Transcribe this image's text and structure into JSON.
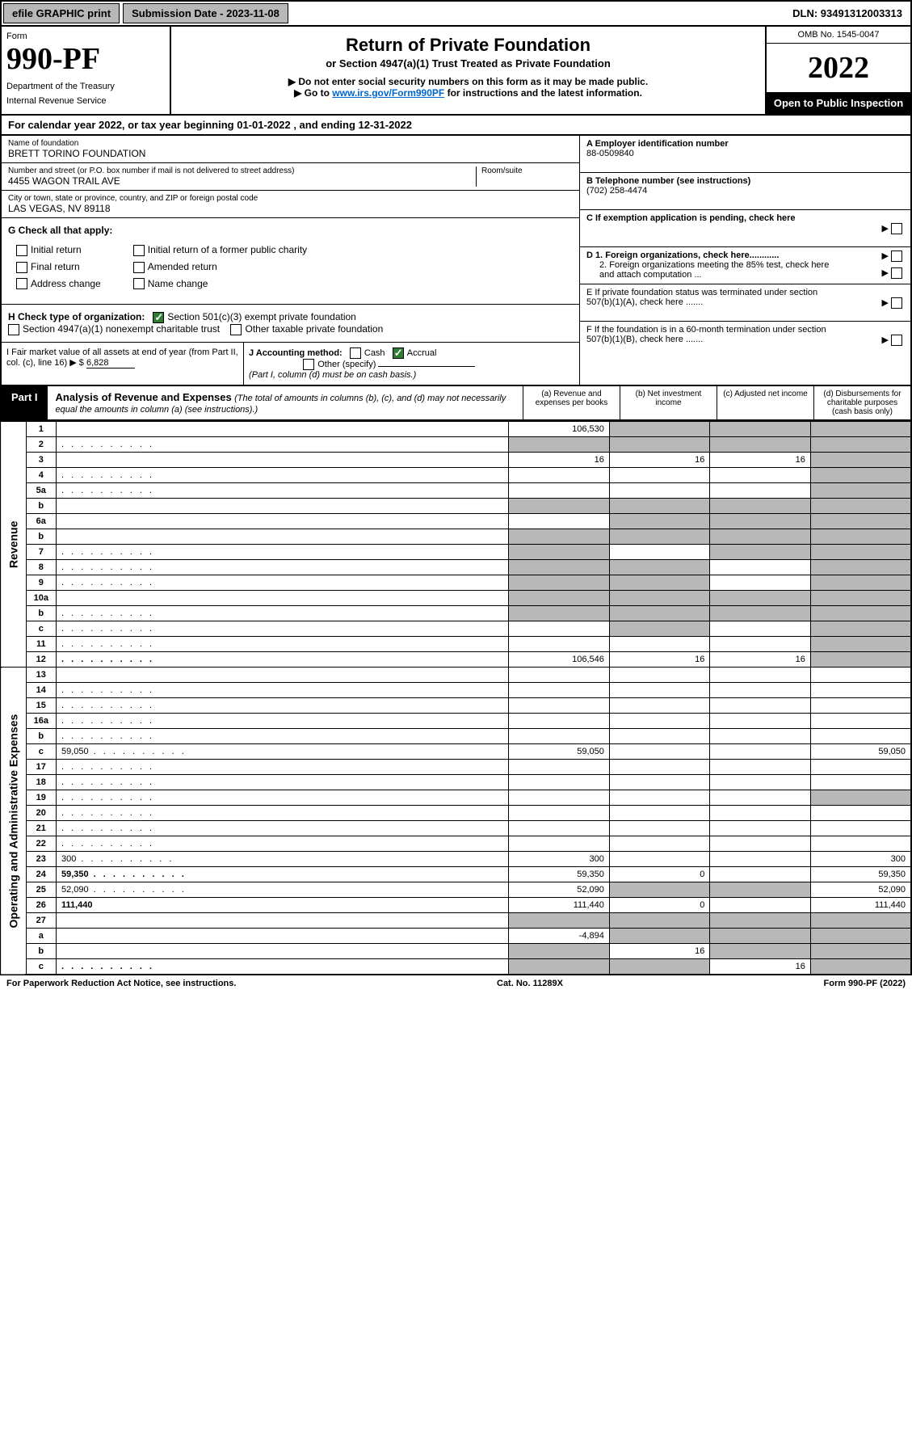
{
  "topbar": {
    "efile": "efile GRAPHIC print",
    "submission": "Submission Date - 2023-11-08",
    "dln": "DLN: 93491312003313"
  },
  "header": {
    "form_label": "Form",
    "form_num": "990-PF",
    "dept": "Department of the Treasury",
    "irs": "Internal Revenue Service",
    "title": "Return of Private Foundation",
    "subtitle": "or Section 4947(a)(1) Trust Treated as Private Foundation",
    "note1": "▶ Do not enter social security numbers on this form as it may be made public.",
    "note2_pre": "▶ Go to ",
    "note2_link": "www.irs.gov/Form990PF",
    "note2_post": " for instructions and the latest information.",
    "omb": "OMB No. 1545-0047",
    "year": "2022",
    "open": "Open to Public Inspection"
  },
  "cal_year": "For calendar year 2022, or tax year beginning 01-01-2022                                 , and ending 12-31-2022",
  "entity": {
    "name_label": "Name of foundation",
    "name": "BRETT TORINO FOUNDATION",
    "addr_label": "Number and street (or P.O. box number if mail is not delivered to street address)",
    "addr": "4455 WAGON TRAIL AVE",
    "room_label": "Room/suite",
    "city_label": "City or town, state or province, country, and ZIP or foreign postal code",
    "city": "LAS VEGAS, NV  89118",
    "a_label": "A Employer identification number",
    "a_val": "88-0509840",
    "b_label": "B Telephone number (see instructions)",
    "b_val": "(702) 258-4474",
    "c_label": "C If exemption application is pending, check here",
    "d1_label": "D 1. Foreign organizations, check here............",
    "d2_label": "2. Foreign organizations meeting the 85% test, check here and attach computation ...",
    "e_label": "E  If private foundation status was terminated under section 507(b)(1)(A), check here .......",
    "f_label": "F  If the foundation is in a 60-month termination under section 507(b)(1)(B), check here .......",
    "g_label": "G Check all that apply:",
    "g_opts": [
      "Initial return",
      "Initial return of a former public charity",
      "Final return",
      "Amended return",
      "Address change",
      "Name change"
    ],
    "h_label": "H Check type of organization:",
    "h_opt1": "Section 501(c)(3) exempt private foundation",
    "h_opt2": "Section 4947(a)(1) nonexempt charitable trust",
    "h_opt3": "Other taxable private foundation",
    "i_label": "I Fair market value of all assets at end of year (from Part II, col. (c), line 16) ▶ $",
    "i_val": "6,828",
    "j_label": "J Accounting method:",
    "j_cash": "Cash",
    "j_accrual": "Accrual",
    "j_other": "Other (specify)",
    "j_note": "(Part I, column (d) must be on cash basis.)"
  },
  "part1": {
    "label": "Part I",
    "title": "Analysis of Revenue and Expenses",
    "title_note": "(The total of amounts in columns (b), (c), and (d) may not necessarily equal the amounts in column (a) (see instructions).)",
    "col_a": "(a)   Revenue and expenses per books",
    "col_b": "(b)   Net investment income",
    "col_c": "(c)   Adjusted net income",
    "col_d": "(d)  Disbursements for charitable purposes (cash basis only)"
  },
  "sides": {
    "rev": "Revenue",
    "exp": "Operating and Administrative Expenses"
  },
  "rows": [
    {
      "n": "1",
      "d": "",
      "a": "106,530",
      "b": "",
      "c": "",
      "sb": true,
      "sc": true,
      "sd": true
    },
    {
      "n": "2",
      "d": "",
      "dots": true,
      "a": "",
      "b": "",
      "c": "",
      "sa": true,
      "sb": true,
      "sc": true,
      "sd": true
    },
    {
      "n": "3",
      "d": "",
      "a": "16",
      "b": "16",
      "c": "16",
      "sd": true
    },
    {
      "n": "4",
      "d": "",
      "dots": true,
      "a": "",
      "b": "",
      "c": "",
      "sd": true
    },
    {
      "n": "5a",
      "d": "",
      "dots": true,
      "a": "",
      "b": "",
      "c": "",
      "sd": true
    },
    {
      "n": "b",
      "d": "",
      "a": "",
      "b": "",
      "c": "",
      "sa": true,
      "sb": true,
      "sc": true,
      "sd": true
    },
    {
      "n": "6a",
      "d": "",
      "a": "",
      "b": "",
      "c": "",
      "sb": true,
      "sc": true,
      "sd": true
    },
    {
      "n": "b",
      "d": "",
      "a": "",
      "b": "",
      "c": "",
      "sa": true,
      "sb": true,
      "sc": true,
      "sd": true
    },
    {
      "n": "7",
      "d": "",
      "dots": true,
      "a": "",
      "b": "",
      "c": "",
      "sa": true,
      "sc": true,
      "sd": true
    },
    {
      "n": "8",
      "d": "",
      "dots": true,
      "a": "",
      "b": "",
      "c": "",
      "sa": true,
      "sb": true,
      "sd": true
    },
    {
      "n": "9",
      "d": "",
      "dots": true,
      "a": "",
      "b": "",
      "c": "",
      "sa": true,
      "sb": true,
      "sd": true
    },
    {
      "n": "10a",
      "d": "",
      "a": "",
      "b": "",
      "c": "",
      "sa": true,
      "sb": true,
      "sc": true,
      "sd": true
    },
    {
      "n": "b",
      "d": "",
      "dots": true,
      "a": "",
      "b": "",
      "c": "",
      "sa": true,
      "sb": true,
      "sc": true,
      "sd": true
    },
    {
      "n": "c",
      "d": "",
      "dots": true,
      "a": "",
      "b": "",
      "c": "",
      "sb": true,
      "sd": true
    },
    {
      "n": "11",
      "d": "",
      "dots": true,
      "a": "",
      "b": "",
      "c": "",
      "sd": true
    },
    {
      "n": "12",
      "d": "",
      "dots": true,
      "bold": true,
      "a": "106,546",
      "b": "16",
      "c": "16",
      "sd": true
    },
    {
      "n": "13",
      "d": "",
      "a": "",
      "b": "",
      "c": ""
    },
    {
      "n": "14",
      "d": "",
      "dots": true,
      "a": "",
      "b": "",
      "c": ""
    },
    {
      "n": "15",
      "d": "",
      "dots": true,
      "a": "",
      "b": "",
      "c": ""
    },
    {
      "n": "16a",
      "d": "",
      "dots": true,
      "a": "",
      "b": "",
      "c": ""
    },
    {
      "n": "b",
      "d": "",
      "dots": true,
      "a": "",
      "b": "",
      "c": ""
    },
    {
      "n": "c",
      "d": "59,050",
      "dots": true,
      "a": "59,050",
      "b": "",
      "c": ""
    },
    {
      "n": "17",
      "d": "",
      "dots": true,
      "a": "",
      "b": "",
      "c": ""
    },
    {
      "n": "18",
      "d": "",
      "dots": true,
      "a": "",
      "b": "",
      "c": ""
    },
    {
      "n": "19",
      "d": "",
      "dots": true,
      "a": "",
      "b": "",
      "c": "",
      "sd": true
    },
    {
      "n": "20",
      "d": "",
      "dots": true,
      "a": "",
      "b": "",
      "c": ""
    },
    {
      "n": "21",
      "d": "",
      "dots": true,
      "a": "",
      "b": "",
      "c": ""
    },
    {
      "n": "22",
      "d": "",
      "dots": true,
      "a": "",
      "b": "",
      "c": ""
    },
    {
      "n": "23",
      "d": "300",
      "dots": true,
      "a": "300",
      "b": "",
      "c": ""
    },
    {
      "n": "24",
      "d": "59,350",
      "dots": true,
      "bold": true,
      "a": "59,350",
      "b": "0",
      "c": ""
    },
    {
      "n": "25",
      "d": "52,090",
      "dots": true,
      "a": "52,090",
      "b": "",
      "c": "",
      "sb": true,
      "sc": true
    },
    {
      "n": "26",
      "d": "111,440",
      "bold": true,
      "a": "111,440",
      "b": "0",
      "c": ""
    },
    {
      "n": "27",
      "d": "",
      "a": "",
      "b": "",
      "c": "",
      "sa": true,
      "sb": true,
      "sc": true,
      "sd": true
    },
    {
      "n": "a",
      "d": "",
      "bold": true,
      "a": "-4,894",
      "b": "",
      "c": "",
      "sb": true,
      "sc": true,
      "sd": true
    },
    {
      "n": "b",
      "d": "",
      "bold": true,
      "a": "",
      "b": "16",
      "c": "",
      "sa": true,
      "sc": true,
      "sd": true
    },
    {
      "n": "c",
      "d": "",
      "dots": true,
      "bold": true,
      "a": "",
      "b": "",
      "c": "16",
      "sa": true,
      "sb": true,
      "sd": true
    }
  ],
  "footer": {
    "left": "For Paperwork Reduction Act Notice, see instructions.",
    "mid": "Cat. No. 11289X",
    "right": "Form 990-PF (2022)"
  }
}
